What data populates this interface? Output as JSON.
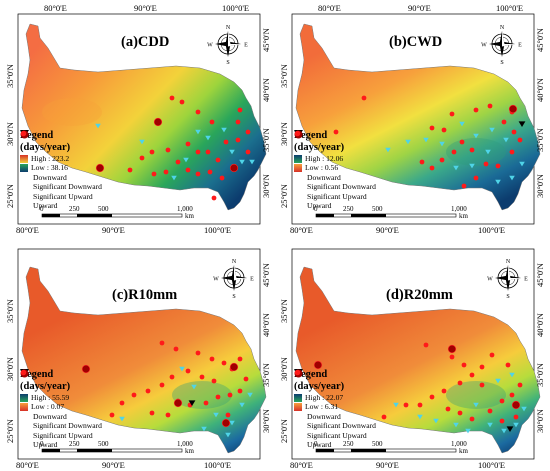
{
  "panels": [
    {
      "id": "a",
      "title": "(a)CDD",
      "top_ticks": [
        "80°0'E",
        "90°0'E",
        "100°0'E"
      ],
      "bottom_ticks": [
        "80°0'E",
        "90°0'E",
        "100°0'E"
      ],
      "right_ticks": [
        "45°0'N",
        "40°0'N",
        "35°0'N",
        "30°0'N"
      ],
      "left_ticks": [
        "35°0'N",
        "30°0'N",
        "25°0'N"
      ],
      "legend": {
        "title": "Legend",
        "units": "(days/year)",
        "high": "High : 223.2",
        "low": "Low : 38.16",
        "items": [
          "Downward",
          "Significant Downward",
          "Significant Upward",
          "Upward"
        ]
      },
      "high_color": "#d73027",
      "low_color": "#0c3c6e",
      "scheme": "cdd"
    },
    {
      "id": "b",
      "title": "(b)CWD",
      "top_ticks": [
        "80°0'E",
        "90°0'E",
        "100°0'E"
      ],
      "bottom_ticks": [
        "80°0'E",
        "90°0'E",
        "100°0'E"
      ],
      "right_ticks": [
        "45°0'N",
        "40°0'N",
        "35°0'N",
        "30°0'N"
      ],
      "left_ticks": [
        "35°0'N",
        "30°0'N",
        "25°0'N"
      ],
      "legend": {
        "title": "Legend",
        "units": "(days/year)",
        "high": "High : 12.06",
        "low": "Low : 0.56",
        "items": [
          "Downward",
          "Significant Downward",
          "Significant Upward",
          "Upward"
        ]
      },
      "high_color": "#0c3c6e",
      "low_color": "#d73027",
      "scheme": "cwd"
    },
    {
      "id": "c",
      "title": "(c)R10mm",
      "top_ticks": [],
      "bottom_ticks": [
        "80°0'E",
        "90°0'E",
        "100°0'E"
      ],
      "right_ticks": [
        "45°0'N",
        "40°0'N",
        "35°0'N",
        "30°0'N"
      ],
      "left_ticks": [
        "35°0'N",
        "30°0'N",
        "25°0'N"
      ],
      "legend": {
        "title": "Legend",
        "units": "(days/year)",
        "high": "High : 55.59",
        "low": "Low : 0.07",
        "items": [
          "Downward",
          "Significant Downward",
          "Significant Upward",
          "Upward"
        ]
      },
      "high_color": "#0c3c6e",
      "low_color": "#d73027",
      "scheme": "wet"
    },
    {
      "id": "d",
      "title": "(d)R20mm",
      "top_ticks": [],
      "bottom_ticks": [
        "80°0'E",
        "90°0'E",
        "100°0'E"
      ],
      "right_ticks": [
        "45°0'N",
        "40°0'N",
        "35°0'N",
        "30°0'N"
      ],
      "left_ticks": [
        "35°0'N",
        "30°0'N",
        "25°0'N"
      ],
      "legend": {
        "title": "Legend",
        "units": "(days/year)",
        "high": "High : 22.07",
        "low": "Low : 6.31",
        "items": [
          "Downward",
          "Significant Downward",
          "Significant Upward",
          "Upward"
        ]
      },
      "high_color": "#0c3c6e",
      "low_color": "#d73027",
      "scheme": "wet"
    }
  ],
  "scale_bar": {
    "labels": [
      "0",
      "250",
      "500",
      "1,000"
    ],
    "unit": "km"
  },
  "compass_letters": [
    "N",
    "E",
    "S",
    "W"
  ],
  "symbol_colors": {
    "downward": "#4fd4e8",
    "sig_downward": "#000000",
    "sig_upward": "#a00000",
    "upward": "#ff1a1a"
  }
}
